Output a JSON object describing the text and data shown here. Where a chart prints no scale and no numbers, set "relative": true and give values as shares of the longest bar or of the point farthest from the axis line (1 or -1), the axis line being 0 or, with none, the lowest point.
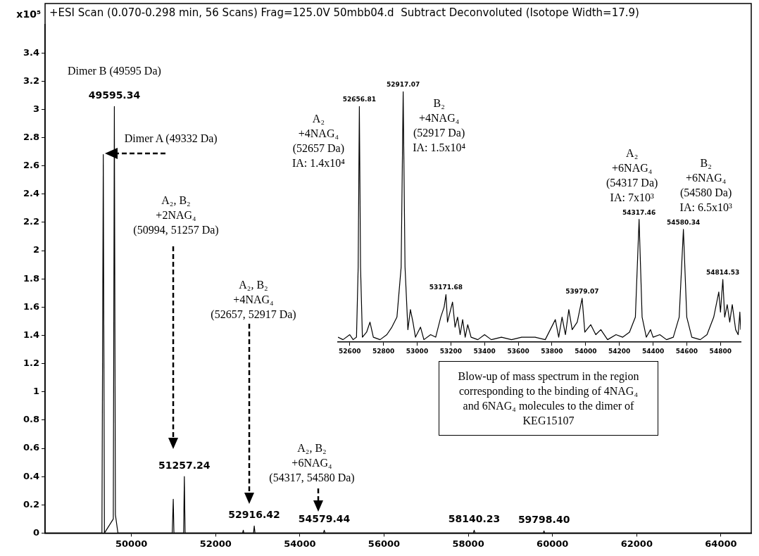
{
  "chart_data": [
    {
      "type": "line",
      "title": "+ESI Scan (0.070-0.298 min, 56 Scans) Frag=125.0V 50mbb04.d  Subtract Deconvoluted (Isotope Width=17.9)",
      "ylabel": "x10⁵",
      "x": [
        47950,
        49300,
        49332,
        49360,
        49570,
        49595,
        49620,
        49680,
        50970,
        50994,
        51010,
        51240,
        51257,
        51275,
        52640,
        52657,
        52670,
        52900,
        52917,
        52935,
        54560,
        54580,
        54600,
        58120,
        58140,
        58160,
        59780,
        59798,
        59815,
        64720
      ],
      "series": [
        {
          "color": "#000000",
          "values": [
            0,
            0,
            2.68,
            0,
            0.1,
            3.02,
            0.13,
            0,
            0,
            0.24,
            0,
            0,
            0.4,
            0,
            0,
            0.02,
            0,
            0,
            0.05,
            0,
            0,
            0.02,
            0,
            0,
            0.02,
            0,
            0,
            0.015,
            0,
            0
          ]
        }
      ],
      "xlim": [
        47950,
        64720
      ],
      "xticks": [
        50000,
        52000,
        54000,
        56000,
        58000,
        60000,
        62000,
        64000
      ],
      "ylim": [
        0,
        3.6
      ],
      "yticks": [
        0,
        0.2,
        0.4,
        0.6,
        0.8,
        1,
        1.2,
        1.4,
        1.6,
        1.8,
        2,
        2.2,
        2.4,
        2.6,
        2.8,
        3,
        3.2,
        3.4
      ],
      "grid": false,
      "legend": false,
      "annotations": [
        {
          "text": "49595.34",
          "x": 49595,
          "y": 3.02
        },
        {
          "text": "Dimer B (49595 Da)",
          "x": 49595,
          "y": 3.02
        },
        {
          "text": "Dimer A (49332 Da)",
          "x": 49332,
          "y": 2.68
        },
        "A₂, B₂\n+2NAG₄\n(50994, 51257 Da)",
        {
          "text": "51257.24",
          "x": 51257,
          "y": 0.4
        },
        "A₂, B₂\n+4NAG₄\n(52657, 52917 Da)",
        {
          "text": "52916.42",
          "x": 52917,
          "y": 0.05
        },
        "A₂, B₂\n+6NAG₄\n(54317, 54580 Da)",
        {
          "text": "54579.44",
          "x": 54580,
          "y": 0.02
        },
        {
          "text": "58140.23",
          "x": 58140,
          "y": 0.02
        },
        {
          "text": "59798.40",
          "x": 59798,
          "y": 0.015
        }
      ]
    },
    {
      "type": "line",
      "relative": true,
      "x": [
        52530,
        52560,
        52600,
        52620,
        52640,
        52650,
        52657,
        52664,
        52675,
        52700,
        52720,
        52740,
        52780,
        52820,
        52850,
        52880,
        52905,
        52917,
        52928,
        52945,
        52960,
        52975,
        52990,
        53020,
        53040,
        53080,
        53110,
        53140,
        53160,
        53171,
        53180,
        53195,
        53210,
        53225,
        53240,
        53255,
        53270,
        53285,
        53300,
        53320,
        53360,
        53400,
        53440,
        53500,
        53560,
        53620,
        53700,
        53760,
        53820,
        53840,
        53860,
        53880,
        53900,
        53920,
        53950,
        53979,
        53995,
        54030,
        54060,
        54090,
        54130,
        54180,
        54220,
        54260,
        54295,
        54317,
        54335,
        54360,
        54385,
        54400,
        54440,
        54480,
        54520,
        54555,
        54580,
        54600,
        54630,
        54680,
        54720,
        54760,
        54790,
        54800,
        54814,
        54825,
        54840,
        54855,
        54870,
        54890,
        54905,
        54915,
        54920
      ],
      "series": [
        {
          "color": "#000000",
          "values": [
            0.02,
            0.01,
            0.03,
            0.01,
            0.02,
            0.3,
            0.94,
            0.3,
            0.02,
            0.04,
            0.08,
            0.02,
            0.01,
            0.03,
            0.06,
            0.1,
            0.3,
            1,
            0.3,
            0.05,
            0.13,
            0.08,
            0.02,
            0.06,
            0.01,
            0.03,
            0.02,
            0.1,
            0.14,
            0.19,
            0.08,
            0.12,
            0.16,
            0.06,
            0.1,
            0.03,
            0.09,
            0.02,
            0.07,
            0.02,
            0.01,
            0.03,
            0.01,
            0.02,
            0.01,
            0.02,
            0.02,
            0.01,
            0.09,
            0.02,
            0.1,
            0.03,
            0.13,
            0.05,
            0.08,
            0.175,
            0.04,
            0.07,
            0.03,
            0.05,
            0.01,
            0.03,
            0.02,
            0.04,
            0.1,
            0.49,
            0.1,
            0.02,
            0.05,
            0.02,
            0.03,
            0.01,
            0.02,
            0.1,
            0.45,
            0.1,
            0.02,
            0.01,
            0.03,
            0.1,
            0.2,
            0.12,
            0.25,
            0.1,
            0.15,
            0.08,
            0.15,
            0.05,
            0.03,
            0.12,
            0.05
          ]
        }
      ],
      "xlim": [
        52530,
        54920
      ],
      "xticks": [
        52600,
        52800,
        53000,
        53200,
        53400,
        53600,
        53800,
        54000,
        54200,
        54400,
        54600,
        54800
      ],
      "grid": false,
      "legend": false,
      "annotations": [
        {
          "text": "52656.81",
          "x": 52657,
          "y": 0.94
        },
        {
          "text": "52917.07",
          "x": 52917,
          "y": 1
        },
        {
          "text": "A₂\n+4NAG₄\n(52657 Da)\nIA: 1.4x10⁴",
          "x": 52657,
          "y": 0.94
        },
        {
          "text": "B₂\n+4NAG₄\n(52917 Da)\nIA: 1.5x10⁴",
          "x": 52917,
          "y": 1
        },
        {
          "text": "54317.46",
          "x": 54317,
          "y": 0.49
        },
        {
          "text": "54580.34",
          "x": 54580,
          "y": 0.45
        },
        {
          "text": "A₂\n+6NAG₄\n(54317 Da)\nIA: 7x10³",
          "x": 54317,
          "y": 0.49
        },
        {
          "text": "B₂\n+6NAG₄\n(54580 Da)\nIA: 6.5x10³",
          "x": 54580,
          "y": 0.45
        },
        {
          "text": "53171.68",
          "x": 53171,
          "y": 0.19
        },
        {
          "text": "53979.07",
          "x": 53979,
          "y": 0.175
        },
        {
          "text": "54814.53",
          "x": 54814,
          "y": 0.25
        },
        "Blow-up of mass spectrum in the region corresponding to the binding of 4NAG₄ and 6NAG₄ molecules to the dimer of KEG15107"
      ]
    }
  ]
}
